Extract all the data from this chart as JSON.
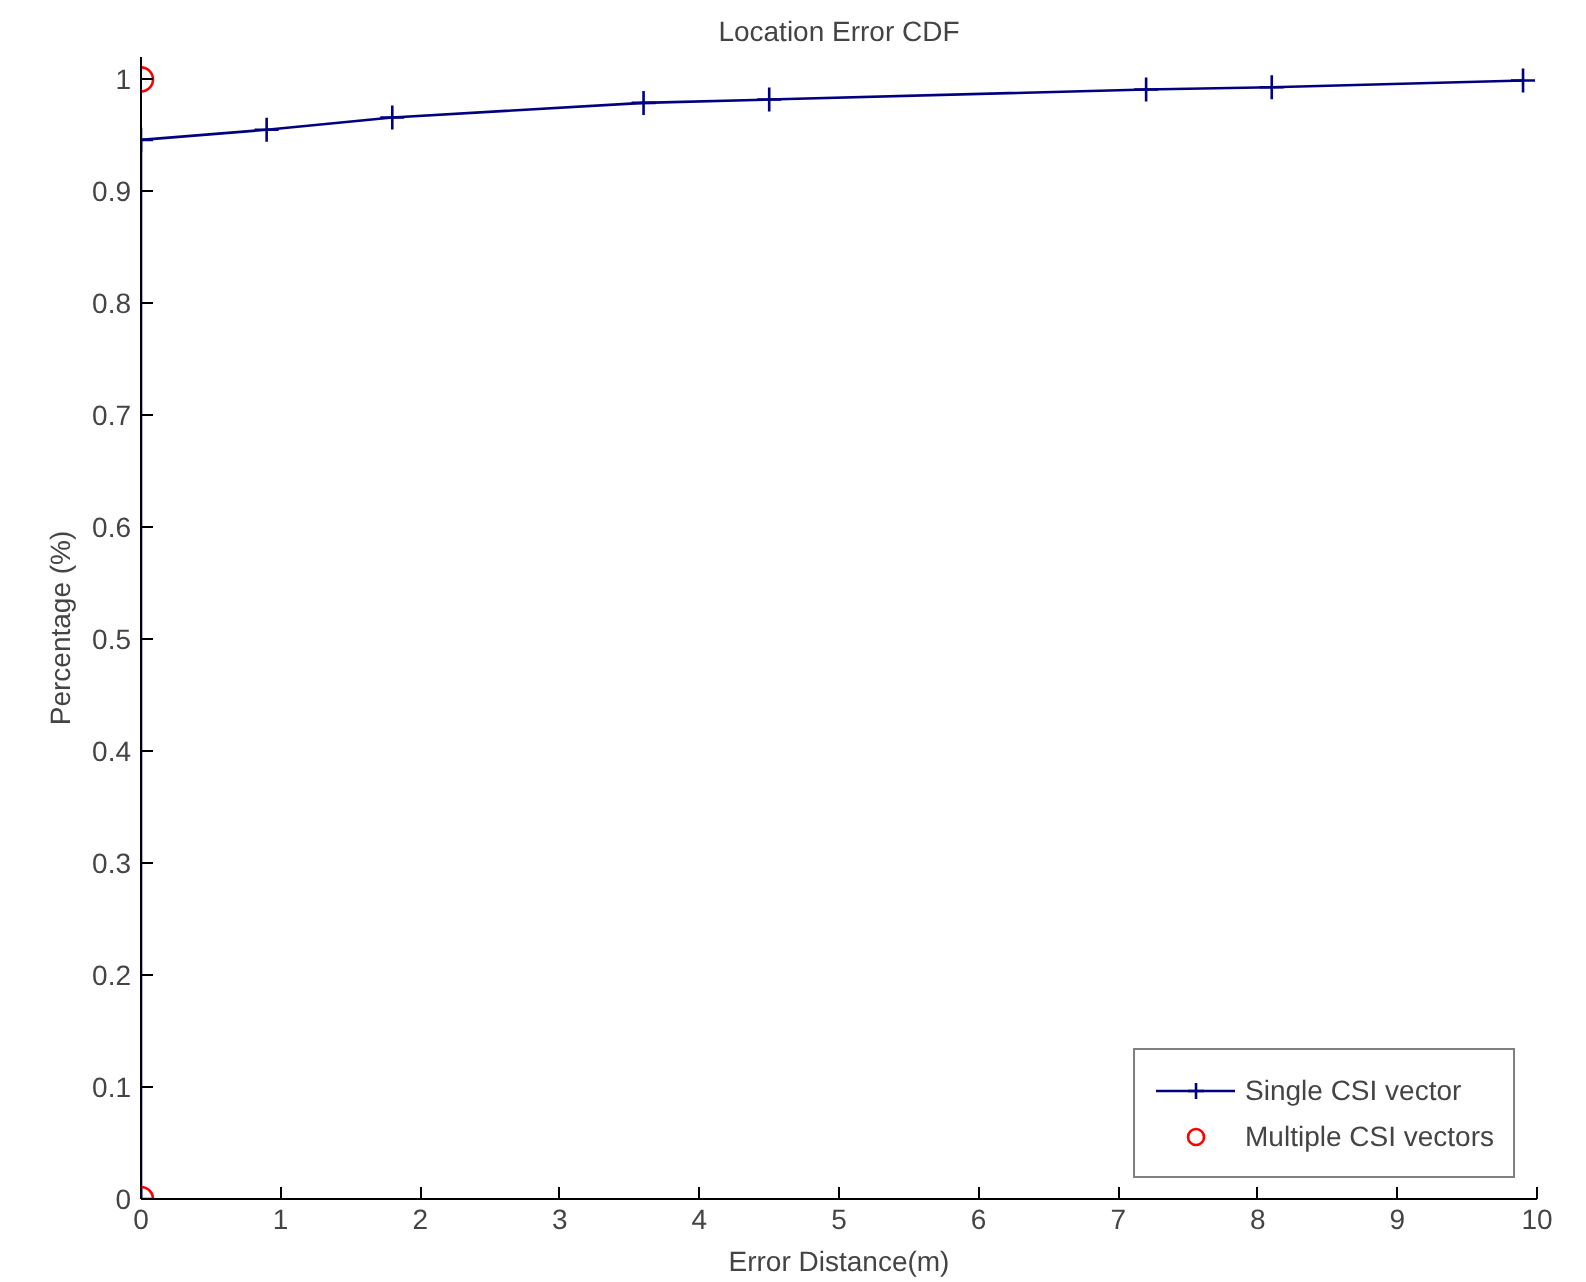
{
  "chart_data": {
    "type": "line",
    "title": "Location Error CDF",
    "xlabel": "Error Distance(m)",
    "ylabel": "Percentage (%)",
    "xlim": [
      0,
      10
    ],
    "ylim": [
      0,
      1.02
    ],
    "xticks": [
      0,
      1,
      2,
      3,
      4,
      5,
      6,
      7,
      8,
      9,
      10
    ],
    "yticks": [
      0,
      0.1,
      0.2,
      0.3,
      0.4,
      0.5,
      0.6,
      0.7,
      0.8,
      0.9,
      1
    ],
    "grid": false,
    "legend": "bottom right",
    "line_style": "solid",
    "series": [
      {
        "name": "Single CSI vector",
        "color": "#000080",
        "marker": "cross",
        "x": [
          0,
          0,
          0.9,
          1.8,
          3.6,
          4.5,
          7.2,
          8.1,
          9.9
        ],
        "values": [
          0,
          0.946,
          0.955,
          0.966,
          0.979,
          0.982,
          0.991,
          0.993,
          0.999
        ]
      },
      {
        "name": "Multiple CSI vectors",
        "type": "scatter",
        "color": "#ff0000",
        "marker": "circle",
        "x": [
          0,
          0
        ],
        "values": [
          0,
          1
        ]
      }
    ]
  }
}
